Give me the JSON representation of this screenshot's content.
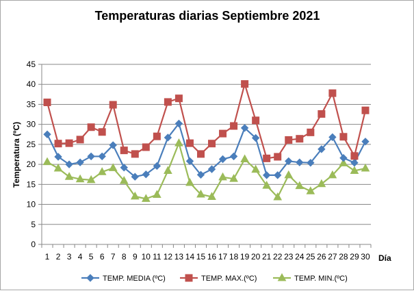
{
  "chart_data": {
    "type": "line",
    "title": "Temperaturas diarias Septiembre 2021",
    "xlabel": "Día",
    "ylabel": "Temperatura (ºC)",
    "ylim": [
      0,
      45
    ],
    "ytick_step": 5,
    "grid": true,
    "legend_position": "bottom",
    "x": [
      1,
      2,
      3,
      4,
      5,
      6,
      7,
      8,
      9,
      10,
      11,
      12,
      13,
      14,
      15,
      16,
      17,
      18,
      19,
      20,
      21,
      22,
      23,
      24,
      25,
      26,
      27,
      28,
      29,
      30
    ],
    "series": [
      {
        "name": "TEMP. MEDIA (ºC)",
        "color": "#4a7ebb",
        "marker": "diamond",
        "values": [
          27.5,
          21.9,
          20.0,
          20.5,
          22.0,
          22.0,
          24.8,
          19.2,
          16.9,
          17.5,
          19.6,
          26.7,
          30.2,
          20.8,
          17.4,
          18.8,
          21.3,
          22.0,
          29.1,
          26.6,
          17.3,
          17.3,
          20.8,
          20.5,
          20.4,
          23.8,
          26.8,
          21.6,
          20.4,
          25.7
        ]
      },
      {
        "name": "TEMP. MAX.(ºC)",
        "color": "#c0504d",
        "marker": "square",
        "values": [
          35.5,
          25.2,
          25.3,
          26.2,
          29.3,
          28.1,
          34.9,
          23.5,
          22.6,
          24.3,
          27.0,
          35.6,
          36.5,
          25.3,
          22.6,
          25.2,
          27.7,
          29.6,
          40.1,
          31.0,
          21.5,
          21.9,
          26.1,
          26.4,
          28.0,
          32.6,
          37.8,
          26.9,
          22.1,
          33.5
        ]
      },
      {
        "name": "TEMP. MIN.(ºC)",
        "color": "#9bbb59",
        "marker": "triangle",
        "values": [
          20.6,
          19.0,
          16.9,
          16.3,
          16.1,
          18.1,
          19.1,
          15.9,
          12.0,
          11.4,
          12.4,
          18.4,
          25.3,
          15.4,
          12.5,
          11.9,
          16.8,
          16.4,
          21.3,
          18.7,
          14.7,
          11.8,
          17.3,
          14.6,
          13.3,
          15.1,
          17.3,
          20.3,
          18.4,
          19.0
        ]
      }
    ]
  }
}
